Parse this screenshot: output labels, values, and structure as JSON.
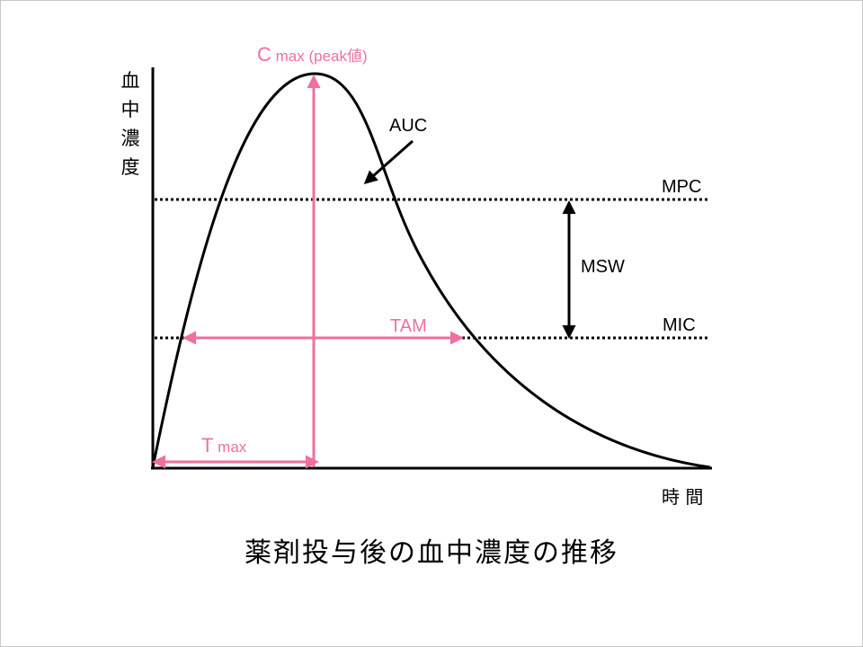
{
  "diagram": {
    "y_axis_label_chars": [
      "血",
      "中",
      "濃",
      "度"
    ],
    "x_axis_label": "時 間",
    "cmax_label_main": "C",
    "cmax_label_sub": " max (peak値)",
    "auc_label": "AUC",
    "mpc_label": "MPC",
    "mic_label": "MIC",
    "msw_label": "MSW",
    "tam_label": "TAM",
    "tmax_label_main": "T",
    "tmax_label_sub": " max",
    "caption": "薬剤投与後の血中濃度の推移"
  },
  "colors": {
    "accent_pink": "#ef6f9f",
    "line_black": "#000000",
    "frame_border": "#c8c8c8"
  }
}
